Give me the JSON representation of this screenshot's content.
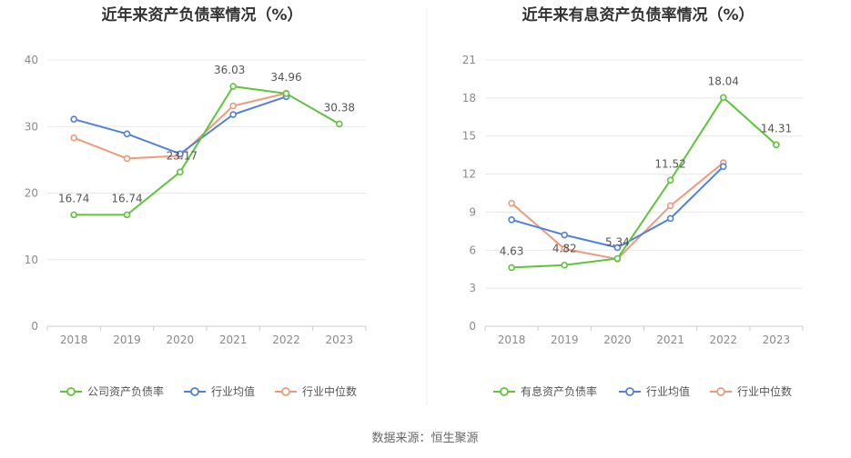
{
  "footer": {
    "source": "数据来源：恒生聚源"
  },
  "colors": {
    "company": "#5ec43a",
    "avg": "#4f81dc",
    "median": "#f0997a",
    "grid": "#e8e8e8",
    "axis": "#cccccc"
  },
  "chart_data": [
    {
      "type": "line",
      "title": "近年来资产负债率情况（%）",
      "categories": [
        "2018",
        "2019",
        "2020",
        "2021",
        "2022",
        "2023"
      ],
      "ylim": [
        0,
        40
      ],
      "yticks": [
        0,
        10,
        20,
        30,
        40
      ],
      "grid": true,
      "legend_position": "bottom",
      "series": [
        {
          "name": "公司资产负债率",
          "color_key": "company",
          "values": [
            16.74,
            16.74,
            23.17,
            36.03,
            34.96,
            30.38
          ],
          "labels": [
            "16.74",
            "16.74",
            "23.17",
            "36.03",
            "34.96",
            "30.38"
          ]
        },
        {
          "name": "行业均值",
          "color_key": "avg",
          "values": [
            31.1,
            28.9,
            25.9,
            31.8,
            34.5,
            null
          ]
        },
        {
          "name": "行业中位数",
          "color_key": "median",
          "values": [
            28.3,
            25.2,
            25.6,
            33.1,
            35.0,
            null
          ]
        }
      ]
    },
    {
      "type": "line",
      "title": "近年来有息资产负债率情况（%）",
      "categories": [
        "2018",
        "2019",
        "2020",
        "2021",
        "2022",
        "2023"
      ],
      "ylim": [
        0,
        21
      ],
      "yticks": [
        0,
        3,
        6,
        9,
        12,
        15,
        18,
        21
      ],
      "grid": true,
      "legend_position": "bottom",
      "series": [
        {
          "name": "有息资产负债率",
          "color_key": "company",
          "values": [
            4.63,
            4.82,
            5.34,
            11.52,
            18.04,
            14.31
          ],
          "labels": [
            "4.63",
            "4.82",
            "5.34",
            "11.52",
            "18.04",
            "14.31"
          ]
        },
        {
          "name": "行业均值",
          "color_key": "avg",
          "values": [
            8.4,
            7.2,
            6.2,
            8.5,
            12.6,
            null
          ]
        },
        {
          "name": "行业中位数",
          "color_key": "median",
          "values": [
            9.7,
            6.1,
            5.3,
            9.5,
            12.9,
            null
          ]
        }
      ]
    }
  ]
}
